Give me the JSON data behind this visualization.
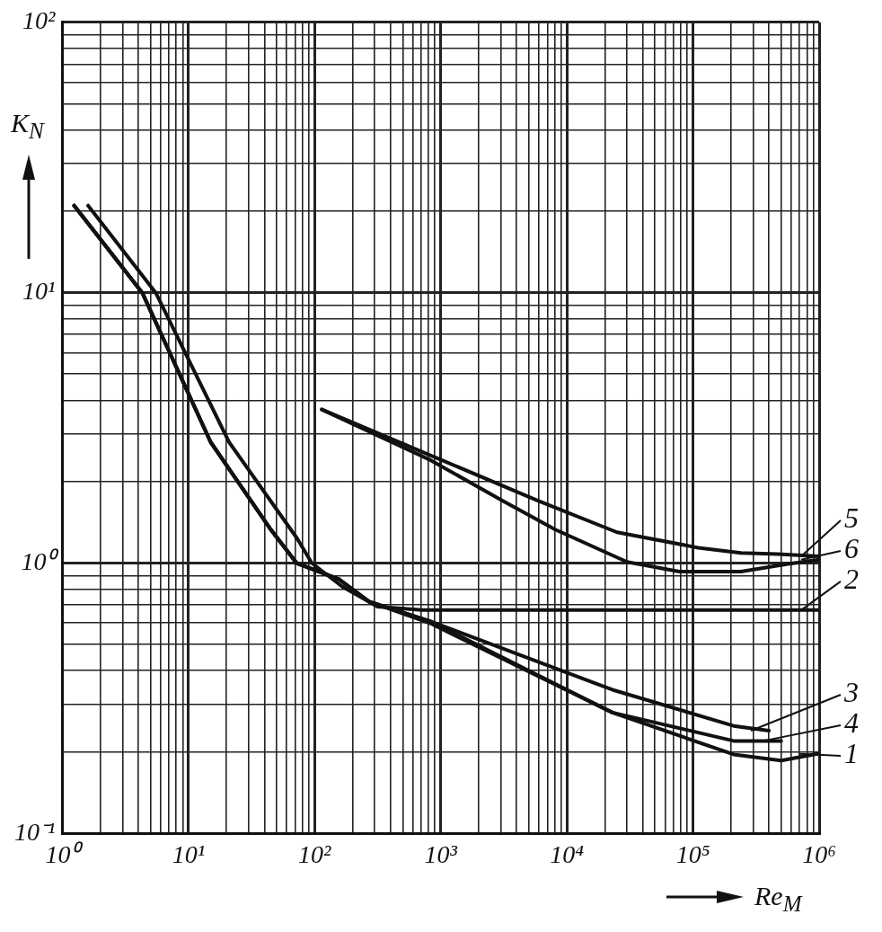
{
  "chart_data": {
    "type": "line",
    "xlabel": "Re$_{M}$",
    "ylabel": "K$_{N}$",
    "log": "xy",
    "grid": true,
    "legend": "right",
    "marker": "none",
    "line_style": "solid",
    "xlim": [
      1,
      1000000
    ],
    "ylim": [
      0.1,
      100
    ],
    "xticks": [
      {
        "value": 1,
        "label": "10⁰"
      },
      {
        "value": 2,
        "label": null
      },
      {
        "value": 3,
        "label": null
      },
      {
        "value": 4,
        "label": null
      },
      {
        "value": 5,
        "label": null
      },
      {
        "value": 6,
        "label": null
      },
      {
        "value": 7,
        "label": null
      },
      {
        "value": 8,
        "label": null
      },
      {
        "value": 9,
        "label": null
      },
      {
        "value": 10,
        "label": "10¹"
      },
      {
        "value": 20,
        "label": null
      },
      {
        "value": 30,
        "label": null
      },
      {
        "value": 40,
        "label": null
      },
      {
        "value": 50,
        "label": null
      },
      {
        "value": 60,
        "label": null
      },
      {
        "value": 70,
        "label": null
      },
      {
        "value": 80,
        "label": null
      },
      {
        "value": 90,
        "label": null
      },
      {
        "value": 100,
        "label": "10²"
      },
      {
        "value": 200,
        "label": null
      },
      {
        "value": 300,
        "label": null
      },
      {
        "value": 400,
        "label": null
      },
      {
        "value": 500,
        "label": null
      },
      {
        "value": 600,
        "label": null
      },
      {
        "value": 700,
        "label": null
      },
      {
        "value": 800,
        "label": null
      },
      {
        "value": 900,
        "label": null
      },
      {
        "value": 1000,
        "label": "10³"
      },
      {
        "value": 2000,
        "label": null
      },
      {
        "value": 3000,
        "label": null
      },
      {
        "value": 4000,
        "label": null
      },
      {
        "value": 5000,
        "label": null
      },
      {
        "value": 6000,
        "label": null
      },
      {
        "value": 7000,
        "label": null
      },
      {
        "value": 8000,
        "label": null
      },
      {
        "value": 9000,
        "label": null
      },
      {
        "value": 10000,
        "label": "10⁴"
      },
      {
        "value": 20000,
        "label": null
      },
      {
        "value": 30000,
        "label": null
      },
      {
        "value": 40000,
        "label": null
      },
      {
        "value": 50000,
        "label": null
      },
      {
        "value": 60000,
        "label": null
      },
      {
        "value": 70000,
        "label": null
      },
      {
        "value": 80000,
        "label": null
      },
      {
        "value": 90000,
        "label": null
      },
      {
        "value": 100000,
        "label": "10⁵"
      },
      {
        "value": 200000,
        "label": null
      },
      {
        "value": 300000,
        "label": null
      },
      {
        "value": 400000,
        "label": null
      },
      {
        "value": 500000,
        "label": null
      },
      {
        "value": 600000,
        "label": null
      },
      {
        "value": 700000,
        "label": null
      },
      {
        "value": 800000,
        "label": null
      },
      {
        "value": 900000,
        "label": null
      },
      {
        "value": 1000000,
        "label": "10⁶"
      }
    ],
    "yticks": [
      {
        "value": 0.1,
        "label": "10⁻¹"
      },
      {
        "value": 0.2,
        "label": null
      },
      {
        "value": 0.3,
        "label": null
      },
      {
        "value": 0.4,
        "label": null
      },
      {
        "value": 0.5,
        "label": null
      },
      {
        "value": 0.6,
        "label": null
      },
      {
        "value": 0.7,
        "label": null
      },
      {
        "value": 0.8,
        "label": null
      },
      {
        "value": 0.9,
        "label": null
      },
      {
        "value": 1,
        "label": "10⁰"
      },
      {
        "value": 2,
        "label": null
      },
      {
        "value": 3,
        "label": null
      },
      {
        "value": 4,
        "label": null
      },
      {
        "value": 5,
        "label": null
      },
      {
        "value": 6,
        "label": null
      },
      {
        "value": 7,
        "label": null
      },
      {
        "value": 8,
        "label": null
      },
      {
        "value": 9,
        "label": null
      },
      {
        "value": 10,
        "label": "10¹"
      },
      {
        "value": 20,
        "label": null
      },
      {
        "value": 30,
        "label": null
      },
      {
        "value": 40,
        "label": null
      },
      {
        "value": 50,
        "label": null
      },
      {
        "value": 60,
        "label": null
      },
      {
        "value": 70,
        "label": null
      },
      {
        "value": 80,
        "label": null
      },
      {
        "value": 90,
        "label": null
      },
      {
        "value": 100,
        "label": "10²"
      }
    ],
    "series": [
      {
        "name": "5",
        "color": "#111111",
        "x": [
          114,
          835,
          5900,
          25000,
          110000,
          240000,
          470000,
          1000000
        ],
        "values": [
          3.7,
          2.5,
          1.7,
          1.3,
          1.14,
          1.09,
          1.08,
          1.06
        ]
      },
      {
        "name": "6",
        "color": "#111111",
        "x": [
          114,
          835,
          3100,
          8100,
          30000,
          78000,
          240000,
          550000,
          1000000
        ],
        "values": [
          3.7,
          2.4,
          1.7,
          1.33,
          1.01,
          0.93,
          0.93,
          0.99,
          1.03
        ]
      },
      {
        "name": "2",
        "color": "#111111",
        "x": [
          1.6,
          5.5,
          21,
          73,
          95,
          165,
          316,
          710,
          30000,
          1000000
        ],
        "values": [
          21,
          10,
          2.8,
          1.23,
          1.0,
          0.82,
          0.69,
          0.67,
          0.67,
          0.67
        ]
      },
      {
        "name": "3",
        "color": "#111111",
        "x": [
          1.24,
          4.3,
          15,
          45,
          72,
          157,
          270,
          820,
          23000,
          210000,
          400000
        ],
        "values": [
          21,
          10,
          2.8,
          1.33,
          1.0,
          0.87,
          0.72,
          0.61,
          0.34,
          0.25,
          0.24
        ]
      },
      {
        "name": "4",
        "color": "#111111",
        "x": [
          1.24,
          4.3,
          15,
          45,
          72,
          157,
          270,
          820,
          23000,
          210000,
          500000
        ],
        "values": [
          21,
          10,
          2.8,
          1.33,
          1.0,
          0.87,
          0.72,
          0.61,
          0.28,
          0.22,
          0.22
        ]
      },
      {
        "name": "1",
        "color": "#111111",
        "x": [
          1.24,
          4.3,
          15,
          45,
          72,
          157,
          270,
          820,
          23000,
          210000,
          500000,
          970000
        ],
        "values": [
          21,
          10,
          2.8,
          1.33,
          1.0,
          0.87,
          0.72,
          0.6,
          0.28,
          0.196,
          0.186,
          0.197
        ]
      }
    ]
  }
}
